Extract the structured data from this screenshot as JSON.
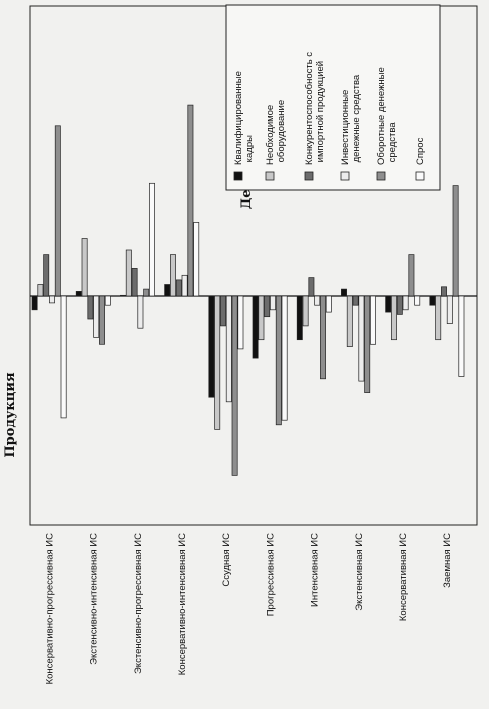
{
  "chart_data": {
    "type": "bar",
    "orientation": "horizontal",
    "rotated_page": true,
    "categories": [
      "Консервативно-прогрессивная ИС",
      "Экстенсивно-интенсивная ИС",
      "Экстенсивно-прогрессивная ИС",
      "Консервативно-интенсивная ИС",
      "Ссудная ИС",
      "Прогрессивная ИС",
      "Интенсивная ИС",
      "Экстенсивная ИС",
      "Консервативная ИС",
      "Заемная ИС"
    ],
    "series": [
      {
        "name": "Квалифицированные кадры",
        "color": "#111111",
        "values": [
          -6,
          2,
          0.3,
          5,
          -44,
          -27,
          -19,
          3,
          -7,
          -4
        ]
      },
      {
        "name": "Необходимое оборудование",
        "color": "#c8c8c8",
        "values": [
          5,
          25,
          20,
          18,
          -58,
          -19,
          -13,
          -22,
          -19,
          -19
        ]
      },
      {
        "name": "Конкурентоспособность с импортной продукцией",
        "color": "#6c6c6c",
        "values": [
          18,
          -10,
          12,
          7,
          -13,
          -9,
          8,
          -4,
          -8,
          4
        ]
      },
      {
        "name": "Инвестиционные денежные средства",
        "color": "#ececec",
        "values": [
          -3,
          -18,
          -14,
          9,
          -46,
          -6,
          -4,
          -37,
          -6,
          -12
        ]
      },
      {
        "name": "Оборотные денежные средства",
        "color": "#8e8e8e",
        "values": [
          74,
          -21,
          3,
          83,
          -78,
          -56,
          -36,
          -42,
          18,
          48
        ]
      },
      {
        "name": "Спрос",
        "color": "#fafafa",
        "values": [
          -53,
          -4,
          49,
          32,
          -23,
          -54,
          -7,
          -21,
          -4,
          -35
        ]
      }
    ],
    "xlabel_left": "Продукция",
    "xlabel_right": "Дефицит",
    "legend_position": "top-right",
    "grid": false
  }
}
